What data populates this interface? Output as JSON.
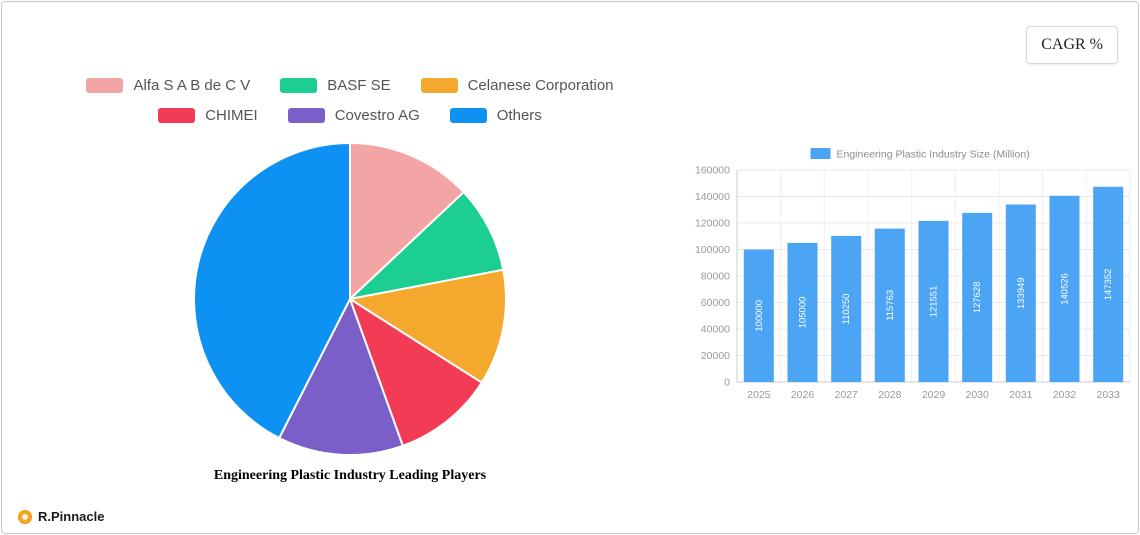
{
  "card": {
    "cagr_button": "CAGR %",
    "brand": "R.Pinnacle"
  },
  "chart_data": [
    {
      "type": "pie",
      "title": "Engineering Plastic Industry Leading Players",
      "legend_position": "top",
      "slices": [
        {
          "label": "Alfa S A B  de C V",
          "value": 13,
          "color": "#F3A4A4"
        },
        {
          "label": "BASF SE",
          "value": 9,
          "color": "#1DCE92"
        },
        {
          "label": "Celanese Corporation",
          "value": 12,
          "color": "#F4A82E"
        },
        {
          "label": "CHIMEI",
          "value": 10.5,
          "color": "#F23B55"
        },
        {
          "label": "Covestro AG",
          "value": 13,
          "color": "#7A5FC8"
        },
        {
          "label": "Others",
          "value": 42.5,
          "color": "#0D92F4"
        }
      ]
    },
    {
      "type": "bar",
      "legend": "Engineering Plastic Industry Size (Million)",
      "categories": [
        "2025",
        "2026",
        "2027",
        "2028",
        "2029",
        "2030",
        "2031",
        "2032",
        "2033"
      ],
      "values": [
        100000,
        105000,
        110250,
        115763,
        121551,
        127628,
        133949,
        140526,
        147352
      ],
      "bar_color": "#4CA4F5",
      "xlabel": "",
      "ylabel": "",
      "ylim": [
        0,
        160000
      ],
      "ytick_step": 20000,
      "grid": true,
      "legend_position": "top"
    }
  ]
}
